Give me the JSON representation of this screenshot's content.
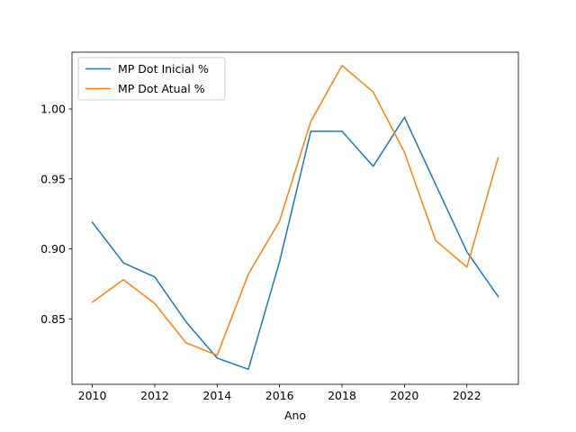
{
  "chart_data": {
    "type": "line",
    "title": "",
    "xlabel": "Ano",
    "ylabel": "",
    "x": [
      2010,
      2011,
      2012,
      2013,
      2014,
      2015,
      2016,
      2017,
      2018,
      2019,
      2020,
      2021,
      2022,
      2023
    ],
    "xticks": [
      2010,
      2012,
      2014,
      2016,
      2018,
      2020,
      2022
    ],
    "yticks": [
      0.85,
      0.9,
      0.95,
      1.0
    ],
    "ytick_labels": [
      "0.85",
      "0.90",
      "0.95",
      "1.00"
    ],
    "xlim": [
      2009.35,
      2023.65
    ],
    "ylim": [
      0.8033,
      1.0405
    ],
    "grid": false,
    "legend_position": "upper-left",
    "series": [
      {
        "name": "MP Dot Inicial %",
        "color": "#1f77b4",
        "values": [
          0.919,
          0.89,
          0.88,
          0.848,
          0.822,
          0.814,
          0.891,
          0.984,
          0.984,
          0.959,
          0.994,
          0.946,
          0.898,
          0.866
        ]
      },
      {
        "name": "MP Dot Atual %",
        "color": "#ff7f0e",
        "values": [
          0.862,
          0.878,
          0.861,
          0.833,
          0.824,
          0.882,
          0.92,
          0.991,
          1.031,
          1.012,
          0.969,
          0.906,
          0.887,
          0.965
        ]
      }
    ]
  }
}
